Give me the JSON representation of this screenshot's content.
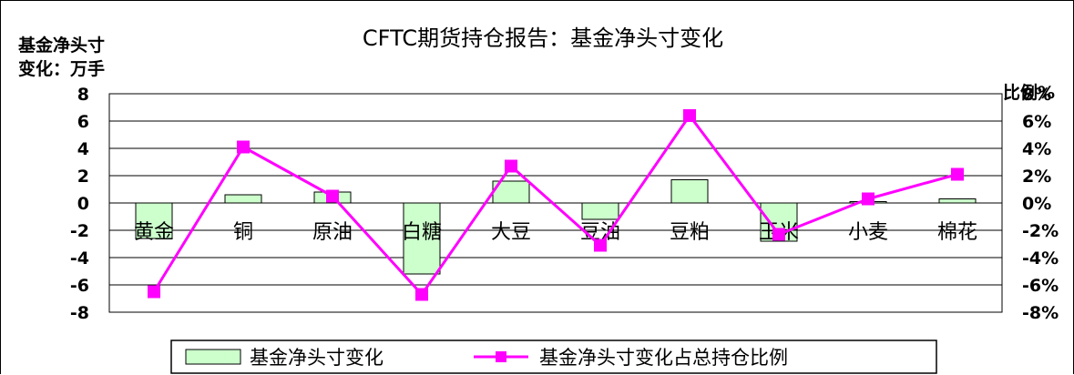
{
  "chart_data": {
    "type": "bar+line",
    "title": "CFTC期货持仓报告：基金净头寸变化",
    "ylabel_left": [
      "基金净头寸",
      "变化：万手"
    ],
    "ylabel_right": "比例%",
    "categories": [
      "黄金",
      "铜",
      "原油",
      "白糖",
      "大豆",
      "豆油",
      "豆粕",
      "玉米",
      "小麦",
      "棉花"
    ],
    "ylim_left": [
      -8,
      8
    ],
    "ylim_right": [
      -8,
      8
    ],
    "left_ticks": [
      "8",
      "6",
      "4",
      "2",
      "0",
      "-2",
      "-4",
      "-6",
      "-8"
    ],
    "right_ticks": [
      "8%",
      "6%",
      "4%",
      "2%",
      "0%",
      "-2%",
      "-4%",
      "-6%",
      "-8%"
    ],
    "grid": true,
    "legend_position": "bottom",
    "series": [
      {
        "name": "基金净头寸变化",
        "type": "bar",
        "axis": "left",
        "color": "#ccffcc",
        "values": [
          -2.6,
          0.6,
          0.8,
          -5.2,
          1.6,
          -1.2,
          1.7,
          -2.8,
          0.1,
          0.3
        ]
      },
      {
        "name": "基金净头寸变化占总持仓比例",
        "type": "line",
        "axis": "right",
        "color": "#ff00ff",
        "values": [
          -6.5,
          4.1,
          0.5,
          -6.7,
          2.7,
          -3.1,
          6.4,
          -2.3,
          0.3,
          2.1
        ]
      }
    ]
  }
}
